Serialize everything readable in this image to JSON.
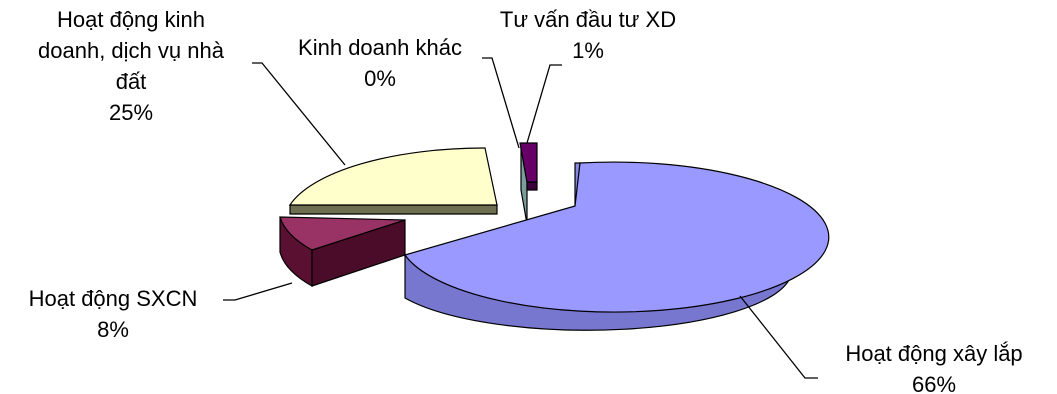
{
  "chart_data": {
    "type": "pie",
    "style": "3d-exploded",
    "slices": [
      {
        "label": "Hoạt động xây lắp",
        "percent_label": "66%",
        "value": 66,
        "color": "#9999FF",
        "side_color": "#7777D0"
      },
      {
        "label": "Hoạt động SXCN",
        "percent_label": "8%",
        "value": 8,
        "color": "#993366",
        "side_color": "#5A1030"
      },
      {
        "label": "Hoạt động kinh doanh, dịch vụ nhà đất",
        "percent_label": "25%",
        "value": 25,
        "color": "#FFFFCC",
        "side_color": "#6E6E50"
      },
      {
        "label": "Kinh doanh khác",
        "percent_label": "0%",
        "value": 0,
        "color": "#CCFFFF",
        "side_color": "#7A9C9C"
      },
      {
        "label": "Tư vấn đầu tư XD",
        "percent_label": "1%",
        "value": 1,
        "color": "#660066",
        "side_color": "#3C003C"
      }
    ],
    "labels": {
      "xay_lap": "Hoạt động xây lắp",
      "xay_lap_pct": "66%",
      "sxcn": "Hoạt động SXCN",
      "sxcn_pct": "8%",
      "nha_dat_line1": "Hoạt động kinh",
      "nha_dat_line2": "doanh, dịch vụ nhà",
      "nha_dat_line3": "đất",
      "nha_dat_pct": "25%",
      "khac": "Kinh doanh khác",
      "khac_pct": "0%",
      "tu_van": "Tư vấn đầu tư XD",
      "tu_van_pct": "1%"
    }
  }
}
